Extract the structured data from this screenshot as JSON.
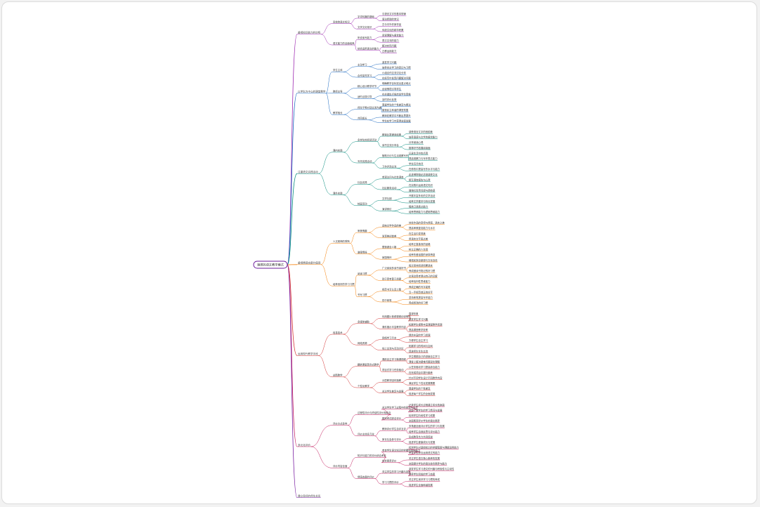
{
  "root": {
    "label": "理想的语文教学模式",
    "color": "#6a1b9a"
  },
  "colors": {
    "b1": "#9c27b0",
    "b2": "#1565c0",
    "b3": "#00897b",
    "b4": "#f57c00",
    "b5": "#d32f2f",
    "b6": "#c2185b",
    "b7": "#7b1fa2"
  },
  "branches": [
    {
      "label": "重视知识能力的训练",
      "c": "b1",
      "children": [
        {
          "label": "系统的语文知识",
          "children": [
            {
              "label": "字词句篇的基础",
              "children": [
                {
                  "label": "汉语言文字的基本规律"
                },
                {
                  "label": "语法修辞的常识"
                }
              ]
            },
            {
              "label": "文学文化常识",
              "children": [
                {
                  "label": "古今中外作家作品"
                },
                {
                  "label": "传统文化的精华积累"
                }
              ]
            }
          ]
        },
        {
          "label": "语文能力的全面培养",
          "children": [
            {
              "label": "听说读写能力",
              "children": [
                {
                  "label": "阅读理解与鉴赏能力"
                },
                {
                  "label": "表达交流的能力"
                }
              ]
            },
            {
              "label": "综合运用语文的能力",
              "children": [
                {
                  "label": "解决实际问题"
                },
                {
                  "label": "迁移运用能力"
                }
              ]
            }
          ]
        }
      ]
    },
    {
      "label": "以学生为中心的课堂教学",
      "c": "b2",
      "children": [
        {
          "label": "学生主体",
          "children": [
            {
              "label": "主动学习",
              "children": [
                {
                  "label": "激发学习兴趣"
                },
                {
                  "label": "培养自主学习的意识与习惯"
                }
              ]
            },
            {
              "label": "合作探究学习",
              "children": [
                {
                  "label": "小组合作交流讨论分享"
                },
                {
                  "label": "在探究中发现问题解决问题"
                }
              ]
            }
          ]
        },
        {
          "label": "教师主导",
          "children": [
            {
              "label": "精心设计教学环节",
              "children": [
                {
                  "label": "明确教学目标突出重点难点"
                },
                {
                  "label": "创设情境引导学生"
                }
              ]
            },
            {
              "label": "适时点拨引导",
              "children": [
                {
                  "label": "在关键处点拨启发学生思维"
                },
                {
                  "label": "及时评价反馈"
                }
              ]
            }
          ]
        },
        {
          "label": "教学相长",
          "children": [
            {
              "label": "师生平等对话交流沟通",
              "children": [
                {
                  "label": "尊重学生的个性差异与想法"
                },
                {
                  "label": "营造民主和谐的课堂氛围"
                }
              ]
            },
            {
              "label": "共同成长",
              "children": [
                {
                  "label": "教师在教学中不断反思提升"
                },
                {
                  "label": "学生在学习中获得全面发展"
                }
              ]
            }
          ]
        }
      ]
    },
    {
      "label": "注重语文实践活动",
      "c": "b3",
      "children": [
        {
          "label": "课内实践",
          "children": [
            {
              "label": "多样化的阅读活动",
              "children": [
                {
                  "label": "朗读比赛诵读经典",
                  "children": [
                    {
                      "label": "感受语言文字的音韵美"
                    },
                    {
                      "label": "培养语感与文学的鉴赏能力"
                    }
                  ]
                },
                {
                  "label": "读书交流分享会",
                  "children": [
                    {
                      "label": "分享阅读心得"
                    },
                    {
                      "label": "推荐好书拓展阅读面"
                    }
                  ]
                }
              ]
            },
            {
              "label": "写作实践活动",
              "children": [
                {
                  "label": "随笔日记与生活观察写作",
                  "children": [
                    {
                      "label": "记录生活中的点滴"
                    },
                    {
                      "label": "提高观察力与写作表达能力"
                    }
                  ]
                },
                {
                  "label": "习作评改交流",
                  "children": [
                    {
                      "label": "学生互评自评"
                    },
                    {
                      "label": "在修改中提高写作水平与能力"
                    }
                  ]
                }
              ]
            }
          ]
        },
        {
          "label": "课外实践",
          "children": [
            {
              "label": "社会实践",
              "children": [
                {
                  "label": "参观访问与社会调查",
                  "children": [
                    {
                      "label": "走进博物馆纪念馆感受文化"
                    },
                    {
                      "label": "撰写调查报告与心得"
                    }
                  ]
                },
                {
                  "label": "社区服务活动",
                  "children": [
                    {
                      "label": "在实践中运用语文知识"
                    },
                    {
                      "label": "增强社会责任感与使命感"
                    }
                  ]
                }
              ]
            },
            {
              "label": "校园活动",
              "children": [
                {
                  "label": "文学社团",
                  "children": [
                    {
                      "label": "开展丰富多彩的文学活动"
                    },
                    {
                      "label": "培养文学爱好与特长发展"
                    }
                  ]
                },
                {
                  "label": "演讲辩论",
                  "children": [
                    {
                      "label": "锻炼口语表达能力"
                    },
                    {
                      "label": "培养思辨能力与逻辑思维能力"
                    }
                  ]
                }
              ]
            }
          ]
        }
      ]
    },
    {
      "label": "重视情感态度价值观",
      "c": "b4",
      "children": [
        {
          "label": "人文精神的熏陶",
          "children": [
            {
              "label": "审美情趣",
              "children": [
                {
                  "label": "品味文学作品的美",
                  "children": [
                    {
                      "label": "体会作品的意境与情感、语言之美"
                    },
                    {
                      "label": "提高审美鉴赏能力与水平"
                    }
                  ]
                },
                {
                  "label": "发现美创造美",
                  "children": [
                    {
                      "label": "在生活中发现美"
                    },
                    {
                      "label": "用语言文字表达美"
                    }
                  ]
                }
              ]
            },
            {
              "label": "道德情操",
              "children": [
                {
                  "label": "塑造健全人格",
                  "children": [
                    {
                      "label": "培养正直善良的品格"
                    },
                    {
                      "label": "树立正确的人生观"
                    }
                  ]
                },
                {
                  "label": "家国情怀",
                  "children": [
                    {
                      "label": "培养热爱祖国的深厚情感"
                    },
                    {
                      "label": "增强民族自豪感与文化自信"
                    }
                  ]
                }
              ]
            }
          ]
        },
        {
          "label": "培养良好的学习习惯",
          "children": [
            {
              "label": "阅读习惯",
              "children": [
                {
                  "label": "广泛阅读多读书读好书",
                  "children": [
                    {
                      "label": "每天坚持阅读积累语言"
                    },
                    {
                      "label": "养成做读书笔记的好习惯"
                    }
                  ]
                },
                {
                  "label": "勤于思考善于质疑",
                  "children": [
                    {
                      "label": "边读边思考提出自己的见解"
                    },
                    {
                      "label": "培养批判性思维能力"
                    }
                  ]
                }
              ]
            },
            {
              "label": "书写习惯",
              "children": [
                {
                  "label": "规范书写认真工整",
                  "children": [
                    {
                      "label": "养成正确的写字姿势"
                    },
                    {
                      "label": "写一手规范端正的好字"
                    }
                  ]
                },
                {
                  "label": "勤于练笔",
                  "children": [
                    {
                      "label": "坚持练笔提高写作能力"
                    },
                    {
                      "label": "养成修改的好习惯"
                    }
                  ]
                }
              ]
            }
          ]
        }
      ]
    },
    {
      "label": "运用现代教学手段",
      "c": "b5",
      "children": [
        {
          "label": "信息技术",
          "children": [
            {
              "label": "多媒体辅助",
              "children": [
                {
                  "label": "利用图片音频视频创设情境",
                  "children": [
                    {
                      "label": "直观形象"
                    },
                    {
                      "label": "激发学生学习兴趣"
                    }
                  ]
                },
                {
                  "label": "课件展示丰富教学内容",
                  "children": [
                    {
                      "label": "拓展学生视野丰富课堂教学资源"
                    },
                    {
                      "label": "提高课堂教学效率"
                    }
                  ]
                }
              ]
            },
            {
              "label": "网络资源",
              "children": [
                {
                  "label": "网络学习平台",
                  "children": [
                    {
                      "label": "提供丰富的学习资源"
                    },
                    {
                      "label": "方便学生自主学习"
                    }
                  ]
                },
                {
                  "label": "线上交流与互动讨论",
                  "children": [
                    {
                      "label": "拓展学习的时间与空间"
                    },
                    {
                      "label": "促进师生生生交流"
                    }
                  ]
                }
              ]
            }
          ]
        },
        {
          "label": "创新教学",
          "children": [
            {
              "label": "翻转课堂混合式教学",
              "children": [
                {
                  "label": "课前自主学习微课视频",
                  "children": [
                    {
                      "label": "学生根据自己的进度自主学习"
                    },
                    {
                      "label": "课堂上解决疑难问题深化理解"
                    }
                  ]
                },
                {
                  "label": "项目式学习任务驱动",
                  "children": [
                    {
                      "label": "以任务驱动学习提高综合能力"
                    },
                    {
                      "label": "在完成项目中提升素养"
                    }
                  ]
                }
              ]
            },
            {
              "label": "个性化教学",
              "children": [
                {
                  "label": "分层教学因材施教",
                  "children": [
                    {
                      "label": "针对不同学生设计不同教学内容"
                    },
                    {
                      "label": "满足学生个性化发展需要"
                    }
                  ]
                },
                {
                  "label": "关注学生差异与发展",
                  "children": [
                    {
                      "label": "尊重学生的个性差异"
                    },
                    {
                      "label": "促进每个学生的全面发展"
                    }
                  ]
                }
              ]
            }
          ]
        }
      ]
    },
    {
      "label": "多元化评价",
      "c": "b6",
      "children": [
        {
          "label": "评价方式多样",
          "children": [
            {
              "label": "过程性评价与终结性评价相结合",
              "children": [
                {
                  "label": "关注学生学习过程中的表现与进步",
                  "children": [
                    {
                      "label": "记录学生成长过程建立成长档案袋"
                    },
                    {
                      "label": "全面了解学生的学习情况与发展"
                    }
                  ]
                },
                {
                  "label": "期末考试综合评价",
                  "children": [
                    {
                      "label": "检测学生阶段性学习成果"
                    },
                    {
                      "label": "全面客观评价学生的语文素养"
                    }
                  ]
                }
              ]
            },
            {
              "label": "评价主体多元化",
              "children": [
                {
                  "label": "教师评价学生自评互评",
                  "children": [
                    {
                      "label": "多角度全面评价学生的学习与发展"
                    },
                    {
                      "label": "培养学生自我反思与评价能力"
                    }
                  ]
                },
                {
                  "label": "家长社会参与评价",
                  "children": [
                    {
                      "label": "形成教育合力共同促进"
                    },
                    {
                      "label": "促进学生健康成长与发展"
                    }
                  ]
                }
              ]
            }
          ]
        },
        {
          "label": "评价内容全面",
          "children": [
            {
              "label": "知识与能力的评价综合考查",
              "children": [
                {
                  "label": "考查学生语文知识的掌握和运用能力",
                  "children": [
                    {
                      "label": "检测学生对基础知识的掌握程度与理解运用能力"
                    },
                    {
                      "label": "考查学生综合运用语文的能力"
                    }
                  ]
                },
                {
                  "label": "综合素养评价",
                  "children": [
                    {
                      "label": "关注学生语文核心素养的发展"
                    },
                    {
                      "label": "全面提升学生的语文综合素养与能力"
                    }
                  ]
                }
              ]
            },
            {
              "label": "情感态度的评价",
              "children": [
                {
                  "label": "关注学生的学习兴趣与态度",
                  "children": [
                    {
                      "label": "激发学生学习语文的兴趣与积极性与主动性"
                    },
                    {
                      "label": "培养学生积极的学习态度"
                    }
                  ]
                },
                {
                  "label": "学习习惯的评价",
                  "children": [
                    {
                      "label": "关注学生良好学习习惯的养成"
                    },
                    {
                      "label": "促进学生全面和谐发展"
                    }
                  ]
                }
              ]
            }
          ]
        }
      ]
    },
    {
      "label": "建立良好的师生关系",
      "c": "b7",
      "children": []
    }
  ]
}
